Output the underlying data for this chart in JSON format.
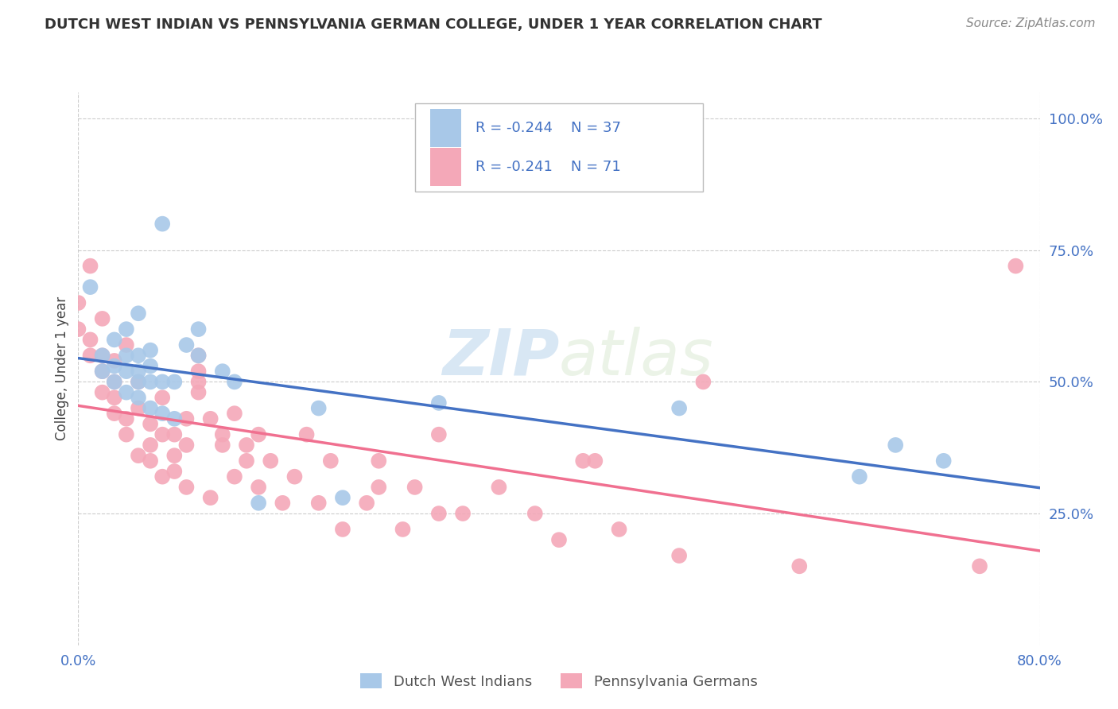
{
  "title": "DUTCH WEST INDIAN VS PENNSYLVANIA GERMAN COLLEGE, UNDER 1 YEAR CORRELATION CHART",
  "source": "Source: ZipAtlas.com",
  "ylabel": "College, Under 1 year",
  "legend_blue_r": "R = -0.244",
  "legend_blue_n": "N = 37",
  "legend_pink_r": "R = -0.241",
  "legend_pink_n": "N = 71",
  "legend_label_blue": "Dutch West Indians",
  "legend_label_pink": "Pennsylvania Germans",
  "blue_color": "#a8c8e8",
  "pink_color": "#f4a8b8",
  "blue_line_color": "#4472c4",
  "pink_line_color": "#f07090",
  "watermark_zip": "ZIP",
  "watermark_atlas": "atlas",
  "background_color": "#ffffff",
  "grid_color": "#cccccc",
  "xlim": [
    0.0,
    0.8
  ],
  "ylim": [
    0.0,
    1.05
  ],
  "blue_scatter_x": [
    0.01,
    0.02,
    0.02,
    0.03,
    0.03,
    0.03,
    0.04,
    0.04,
    0.04,
    0.04,
    0.05,
    0.05,
    0.05,
    0.05,
    0.05,
    0.06,
    0.06,
    0.06,
    0.06,
    0.07,
    0.07,
    0.07,
    0.08,
    0.08,
    0.09,
    0.1,
    0.1,
    0.12,
    0.13,
    0.15,
    0.2,
    0.22,
    0.3,
    0.5,
    0.65,
    0.68,
    0.72
  ],
  "blue_scatter_y": [
    0.68,
    0.52,
    0.55,
    0.5,
    0.53,
    0.58,
    0.48,
    0.52,
    0.55,
    0.6,
    0.47,
    0.5,
    0.52,
    0.55,
    0.63,
    0.45,
    0.5,
    0.53,
    0.56,
    0.44,
    0.5,
    0.8,
    0.43,
    0.5,
    0.57,
    0.6,
    0.55,
    0.52,
    0.5,
    0.27,
    0.45,
    0.28,
    0.46,
    0.45,
    0.32,
    0.38,
    0.35
  ],
  "pink_scatter_x": [
    0.0,
    0.0,
    0.01,
    0.01,
    0.01,
    0.02,
    0.02,
    0.02,
    0.02,
    0.03,
    0.03,
    0.03,
    0.03,
    0.04,
    0.04,
    0.04,
    0.05,
    0.05,
    0.05,
    0.06,
    0.06,
    0.06,
    0.07,
    0.07,
    0.07,
    0.08,
    0.08,
    0.08,
    0.09,
    0.09,
    0.09,
    0.1,
    0.1,
    0.1,
    0.1,
    0.11,
    0.11,
    0.12,
    0.12,
    0.13,
    0.13,
    0.14,
    0.14,
    0.15,
    0.15,
    0.16,
    0.17,
    0.18,
    0.19,
    0.2,
    0.21,
    0.22,
    0.24,
    0.25,
    0.25,
    0.27,
    0.28,
    0.3,
    0.3,
    0.32,
    0.35,
    0.38,
    0.4,
    0.42,
    0.43,
    0.45,
    0.5,
    0.52,
    0.6,
    0.75,
    0.78
  ],
  "pink_scatter_y": [
    0.6,
    0.65,
    0.55,
    0.58,
    0.72,
    0.48,
    0.52,
    0.55,
    0.62,
    0.44,
    0.47,
    0.5,
    0.54,
    0.4,
    0.43,
    0.57,
    0.36,
    0.45,
    0.5,
    0.35,
    0.38,
    0.42,
    0.32,
    0.4,
    0.47,
    0.33,
    0.36,
    0.4,
    0.3,
    0.38,
    0.43,
    0.48,
    0.5,
    0.52,
    0.55,
    0.28,
    0.43,
    0.38,
    0.4,
    0.32,
    0.44,
    0.35,
    0.38,
    0.3,
    0.4,
    0.35,
    0.27,
    0.32,
    0.4,
    0.27,
    0.35,
    0.22,
    0.27,
    0.3,
    0.35,
    0.22,
    0.3,
    0.25,
    0.4,
    0.25,
    0.3,
    0.25,
    0.2,
    0.35,
    0.35,
    0.22,
    0.17,
    0.5,
    0.15,
    0.15,
    0.72
  ]
}
